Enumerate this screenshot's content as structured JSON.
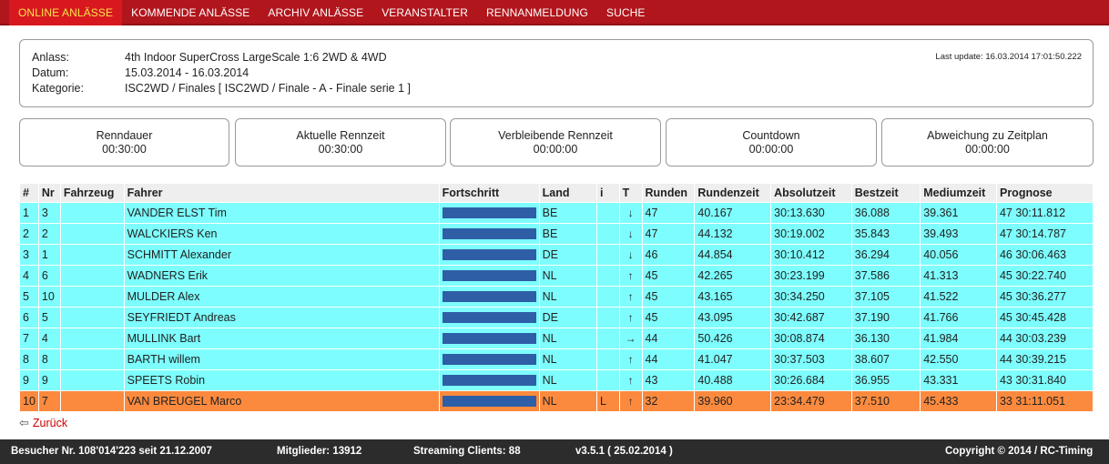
{
  "nav": {
    "items": [
      {
        "label": "ONLINE ANLÄSSE",
        "active": true
      },
      {
        "label": "KOMMENDE ANLÄSSE"
      },
      {
        "label": "ARCHIV ANLÄSSE"
      },
      {
        "label": "VERANSTALTER"
      },
      {
        "label": "RENNANMELDUNG"
      },
      {
        "label": "SUCHE"
      }
    ]
  },
  "event": {
    "anlass_label": "Anlass:",
    "anlass": "4th Indoor SuperCross LargeScale 1:6 2WD & 4WD",
    "datum_label": "Datum:",
    "datum": "15.03.2014 - 16.03.2014",
    "kategorie_label": "Kategorie:",
    "kategorie": "ISC2WD / Finales [ ISC2WD / Finale - A - Finale serie 1 ]",
    "last_update": "Last update: 16.03.2014 17:01:50.222"
  },
  "timers": [
    {
      "label": "Renndauer",
      "value": "00:30:00"
    },
    {
      "label": "Aktuelle Rennzeit",
      "value": "00:30:00"
    },
    {
      "label": "Verbleibende Rennzeit",
      "value": "00:00:00"
    },
    {
      "label": "Countdown",
      "value": "00:00:00"
    },
    {
      "label": "Abweichung zu Zeitplan",
      "value": "00:00:00"
    }
  ],
  "table": {
    "headers": [
      "#",
      "Nr",
      "Fahrzeug",
      "Fahrer",
      "Fortschritt",
      "Land",
      "i",
      "T",
      "Runden",
      "Rundenzeit",
      "Absolutzeit",
      "Bestzeit",
      "Mediumzeit",
      "Prognose"
    ],
    "rows": [
      {
        "pos": "1",
        "nr": "3",
        "fahrer": "VANDER ELST Tim",
        "land": "BE",
        "i": "",
        "trend": "↓",
        "runden": "47",
        "rundenzeit": "40.167",
        "absolutzeit": "30:13.630",
        "bestzeit": "36.088",
        "mediumzeit": "39.361",
        "prognose": "47 30:11.812",
        "progress": 1.0
      },
      {
        "pos": "2",
        "nr": "2",
        "fahrer": "WALCKIERS Ken",
        "land": "BE",
        "i": "",
        "trend": "↓",
        "runden": "47",
        "rundenzeit": "44.132",
        "absolutzeit": "30:19.002",
        "bestzeit": "35.843",
        "mediumzeit": "39.493",
        "prognose": "47 30:14.787",
        "progress": 1.0
      },
      {
        "pos": "3",
        "nr": "1",
        "fahrer": "SCHMITT Alexander",
        "land": "DE",
        "i": "",
        "trend": "↓",
        "runden": "46",
        "rundenzeit": "44.854",
        "absolutzeit": "30:10.412",
        "bestzeit": "36.294",
        "mediumzeit": "40.056",
        "prognose": "46 30:06.463",
        "progress": 1.0
      },
      {
        "pos": "4",
        "nr": "6",
        "fahrer": "WADNERS Erik",
        "land": "NL",
        "i": "",
        "trend": "↑",
        "runden": "45",
        "rundenzeit": "42.265",
        "absolutzeit": "30:23.199",
        "bestzeit": "37.586",
        "mediumzeit": "41.313",
        "prognose": "45 30:22.740",
        "progress": 1.0
      },
      {
        "pos": "5",
        "nr": "10",
        "fahrer": "MULDER Alex",
        "land": "NL",
        "i": "",
        "trend": "↑",
        "runden": "45",
        "rundenzeit": "43.165",
        "absolutzeit": "30:34.250",
        "bestzeit": "37.105",
        "mediumzeit": "41.522",
        "prognose": "45 30:36.277",
        "progress": 1.0
      },
      {
        "pos": "6",
        "nr": "5",
        "fahrer": "SEYFRIEDT Andreas",
        "land": "DE",
        "i": "",
        "trend": "↑",
        "runden": "45",
        "rundenzeit": "43.095",
        "absolutzeit": "30:42.687",
        "bestzeit": "37.190",
        "mediumzeit": "41.766",
        "prognose": "45 30:45.428",
        "progress": 1.0
      },
      {
        "pos": "7",
        "nr": "4",
        "fahrer": "MULLINK Bart",
        "land": "NL",
        "i": "",
        "trend": "→",
        "runden": "44",
        "rundenzeit": "50.426",
        "absolutzeit": "30:08.874",
        "bestzeit": "36.130",
        "mediumzeit": "41.984",
        "prognose": "44 30:03.239",
        "progress": 1.0
      },
      {
        "pos": "8",
        "nr": "8",
        "fahrer": "BARTH willem",
        "land": "NL",
        "i": "",
        "trend": "↑",
        "runden": "44",
        "rundenzeit": "41.047",
        "absolutzeit": "30:37.503",
        "bestzeit": "38.607",
        "mediumzeit": "42.550",
        "prognose": "44 30:39.215",
        "progress": 1.0
      },
      {
        "pos": "9",
        "nr": "9",
        "fahrer": "SPEETS Robin",
        "land": "NL",
        "i": "",
        "trend": "↑",
        "runden": "43",
        "rundenzeit": "40.488",
        "absolutzeit": "30:26.684",
        "bestzeit": "36.955",
        "mediumzeit": "43.331",
        "prognose": "43 30:31.840",
        "progress": 1.0
      },
      {
        "pos": "10",
        "nr": "7",
        "fahrer": "VAN BREUGEL Marco",
        "land": "NL",
        "i": "L",
        "trend": "↑",
        "runden": "32",
        "rundenzeit": "39.960",
        "absolutzeit": "23:34.479",
        "bestzeit": "37.510",
        "mediumzeit": "45.433",
        "prognose": "33 31:11.051",
        "progress": 1.0,
        "highlight": true
      }
    ]
  },
  "back_link": "Zurück",
  "footer": {
    "visitors": "Besucher Nr. 108'014'223 seit 21.12.2007",
    "members": "Mitglieder: 13912",
    "streaming": "Streaming Clients: 88",
    "version": "v3.5.1 ( 25.02.2014 )",
    "copyright": "Copyright © 2014 / RC-Timing"
  },
  "colors": {
    "nav_bg": "#b1161c",
    "nav_active": "#d8181f",
    "nav_active_text": "#f7e44a",
    "row_bg": "#7dfdfd",
    "row_highlight": "#fc8a3e",
    "progress_bar": "#2e5fa6",
    "footer_bg": "#2c2c2c"
  }
}
